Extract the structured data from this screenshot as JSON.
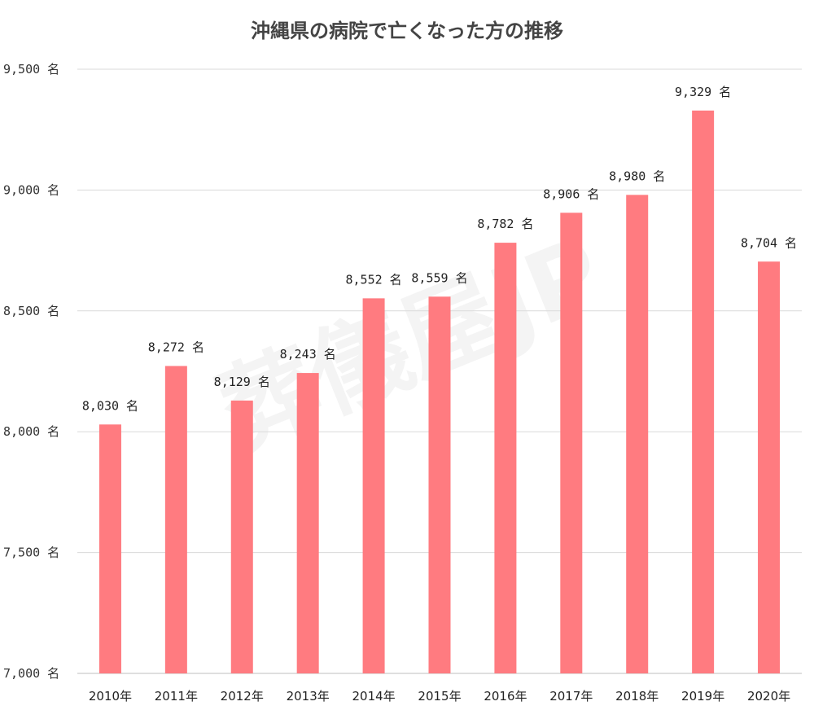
{
  "watermark": "葬儀屋JP",
  "chart_data": {
    "type": "bar",
    "title": "沖縄県の病院で亡くなった方の推移",
    "categories": [
      "2010年",
      "2011年",
      "2012年",
      "2013年",
      "2014年",
      "2015年",
      "2016年",
      "2017年",
      "2018年",
      "2019年",
      "2020年"
    ],
    "values": [
      8030,
      8272,
      8129,
      8243,
      8552,
      8559,
      8782,
      8906,
      8980,
      9329,
      8704
    ],
    "data_labels": [
      "8,030 名",
      "8,272 名",
      "8,129 名",
      "8,243 名",
      "8,552 名",
      "8,559 名",
      "8,782 名",
      "8,906 名",
      "8,980 名",
      "9,329 名",
      "8,704 名"
    ],
    "yticks": [
      7000,
      7500,
      8000,
      8500,
      9000,
      9500
    ],
    "ytick_labels": [
      "7,000 名",
      "7,500 名",
      "8,000 名",
      "8,500 名",
      "9,000 名",
      "9,500 名"
    ],
    "ylim": [
      7000,
      9500
    ],
    "xlabel": "",
    "ylabel": "",
    "grid": true,
    "legend": "none",
    "bar_color": "#ff7b80"
  }
}
